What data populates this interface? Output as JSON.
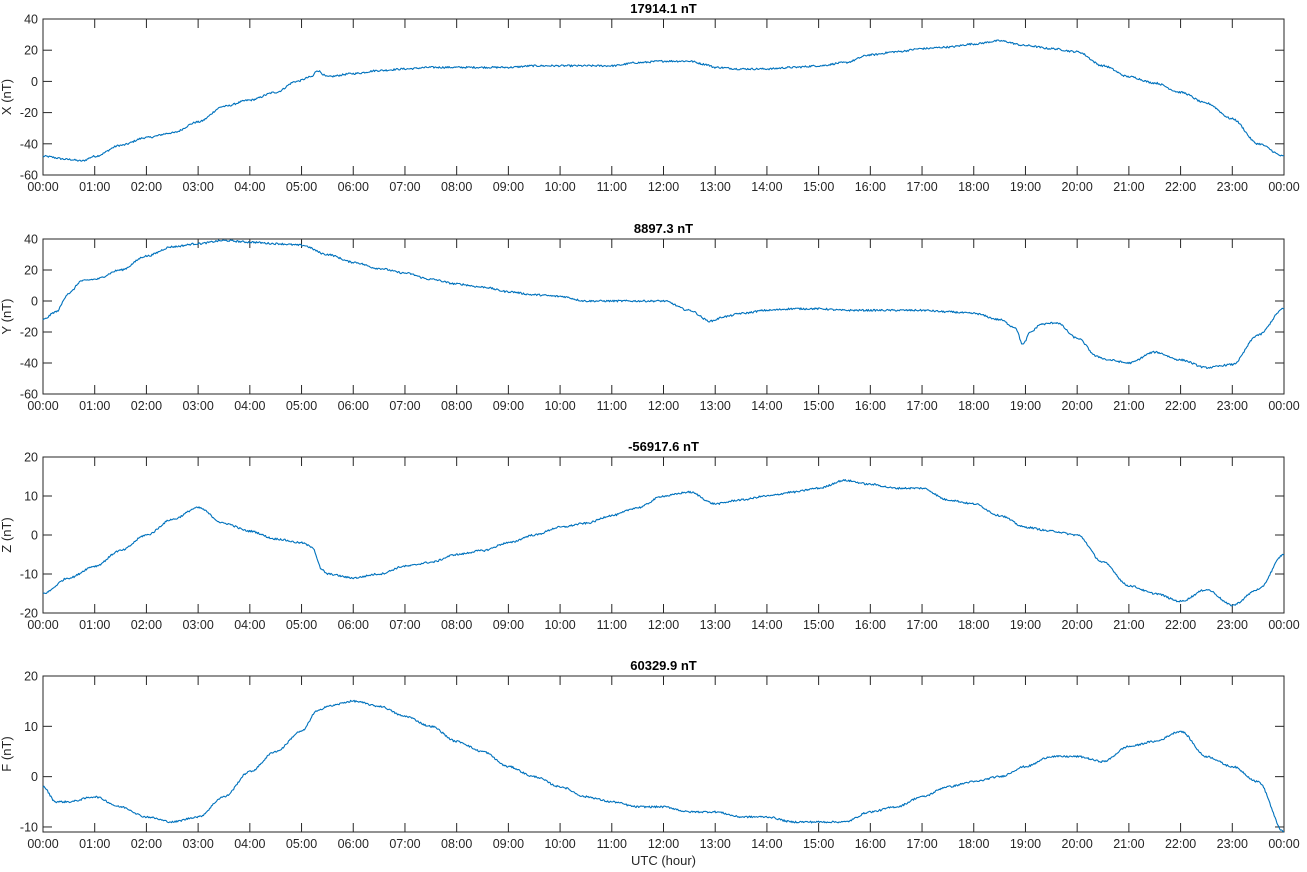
{
  "chart_data": [
    {
      "type": "line",
      "title": "17914.1 nT",
      "ylabel": "X (nT)",
      "xlabel": "",
      "ylim": [
        -60,
        40
      ],
      "yticks": [
        -60,
        -40,
        -20,
        0,
        20,
        40
      ],
      "xlim": [
        "00:00",
        "00:00 (+1 day)"
      ],
      "xtick_labels": [
        "00:00",
        "01:00",
        "02:00",
        "03:00",
        "04:00",
        "05:00",
        "06:00",
        "07:00",
        "08:00",
        "09:00",
        "10:00",
        "11:00",
        "12:00",
        "13:00",
        "14:00",
        "15:00",
        "16:00",
        "17:00",
        "18:00",
        "19:00",
        "20:00",
        "21:00",
        "22:00",
        "23:00",
        "00:00"
      ],
      "grid": false,
      "series": [
        {
          "color": "#0072BD",
          "x_hours": [
            0,
            0.5,
            0.75,
            1,
            1.5,
            2,
            2.5,
            3,
            3.5,
            4,
            4.5,
            4.9,
            5.2,
            5.3,
            5.5,
            6,
            6.5,
            7,
            7.5,
            8,
            8.5,
            9,
            9.5,
            10,
            10.5,
            11,
            11.5,
            12,
            12.5,
            12.8,
            13,
            13.5,
            14,
            14.5,
            15,
            15.5,
            16,
            16.5,
            17,
            17.5,
            18,
            18.5,
            19,
            19.5,
            20,
            20.5,
            21,
            21.5,
            22,
            22.5,
            23,
            23.5,
            24
          ],
          "y": [
            -48,
            -50,
            -51,
            -48,
            -41,
            -36,
            -33,
            -26,
            -16,
            -12,
            -7,
            0,
            3,
            7,
            3,
            5,
            7,
            8,
            9,
            9,
            9,
            9,
            10,
            10,
            10,
            10,
            12,
            13,
            13,
            11,
            9,
            8,
            8,
            9,
            10,
            12,
            17,
            19,
            21,
            22,
            24,
            26,
            23,
            21,
            19,
            10,
            3,
            -1,
            -7,
            -14,
            -24,
            -40,
            -48
          ]
        }
      ]
    },
    {
      "type": "line",
      "title": "8897.3 nT",
      "ylabel": "Y (nT)",
      "xlabel": "",
      "ylim": [
        -60,
        40
      ],
      "yticks": [
        -60,
        -40,
        -20,
        0,
        20,
        40
      ],
      "xlim": [
        "00:00",
        "00:00 (+1 day)"
      ],
      "xtick_labels": [
        "00:00",
        "01:00",
        "02:00",
        "03:00",
        "04:00",
        "05:00",
        "06:00",
        "07:00",
        "08:00",
        "09:00",
        "10:00",
        "11:00",
        "12:00",
        "13:00",
        "14:00",
        "15:00",
        "16:00",
        "17:00",
        "18:00",
        "19:00",
        "20:00",
        "21:00",
        "22:00",
        "23:00",
        "00:00"
      ],
      "grid": false,
      "series": [
        {
          "color": "#0072BD",
          "x_hours": [
            0,
            0.25,
            0.5,
            0.75,
            1,
            1.5,
            2,
            2.5,
            3,
            3.5,
            4,
            4.5,
            5,
            5.5,
            6,
            6.5,
            7,
            7.5,
            8,
            8.5,
            9,
            9.5,
            10,
            10.5,
            11,
            11.5,
            12,
            12.5,
            12.9,
            13.2,
            13.5,
            14,
            14.5,
            15,
            15.5,
            16,
            16.5,
            17,
            17.5,
            18,
            18.5,
            18.8,
            18.95,
            19.1,
            19.3,
            19.6,
            20,
            20.4,
            20.6,
            21,
            21.5,
            22,
            22.5,
            23,
            23.5,
            24
          ],
          "y": [
            -12,
            -7,
            5,
            13,
            14,
            20,
            29,
            35,
            37,
            39,
            38,
            37,
            36,
            30,
            25,
            21,
            18,
            14,
            11,
            9,
            6,
            4,
            3,
            0,
            0,
            0,
            0,
            -6,
            -13,
            -10,
            -8,
            -6,
            -5,
            -5,
            -6,
            -6,
            -6,
            -6,
            -7,
            -8,
            -12,
            -17,
            -28,
            -20,
            -15,
            -14,
            -24,
            -36,
            -38,
            -40,
            -33,
            -38,
            -43,
            -41,
            -22,
            -5
          ]
        }
      ]
    },
    {
      "type": "line",
      "title": "-56917.6 nT",
      "ylabel": "Z (nT)",
      "xlabel": "",
      "ylim": [
        -20,
        20
      ],
      "yticks": [
        -20,
        -10,
        0,
        10,
        20
      ],
      "xlim": [
        "00:00",
        "00:00 (+1 day)"
      ],
      "xtick_labels": [
        "00:00",
        "01:00",
        "02:00",
        "03:00",
        "04:00",
        "05:00",
        "06:00",
        "07:00",
        "08:00",
        "09:00",
        "10:00",
        "11:00",
        "12:00",
        "13:00",
        "14:00",
        "15:00",
        "16:00",
        "17:00",
        "18:00",
        "19:00",
        "20:00",
        "21:00",
        "22:00",
        "23:00",
        "00:00"
      ],
      "grid": false,
      "series": [
        {
          "color": "#0072BD",
          "x_hours": [
            0,
            0.5,
            1,
            1.5,
            2,
            2.5,
            3,
            3.5,
            4,
            4.5,
            5,
            5.2,
            5.4,
            5.5,
            6,
            6.5,
            7,
            7.5,
            8,
            8.5,
            9,
            9.5,
            10,
            10.5,
            11,
            11.5,
            12,
            12.5,
            13,
            13.5,
            14,
            14.5,
            15,
            15.5,
            16,
            16.5,
            17,
            17.5,
            18,
            18.5,
            19,
            19.5,
            20,
            20.5,
            21,
            21.5,
            22,
            22.5,
            23,
            23.5,
            24
          ],
          "y": [
            -15,
            -11,
            -8,
            -4,
            0,
            4,
            7,
            3,
            1,
            -1,
            -2,
            -3,
            -9,
            -10,
            -11,
            -10,
            -8,
            -7,
            -5,
            -4,
            -2,
            0,
            2,
            3,
            5,
            7,
            10,
            11,
            8,
            9,
            10,
            11,
            12,
            14,
            13,
            12,
            12,
            9,
            8,
            5,
            2,
            1,
            0,
            -7,
            -13,
            -15,
            -17,
            -14,
            -18,
            -14,
            -5
          ]
        }
      ]
    },
    {
      "type": "line",
      "title": "60329.9 nT",
      "ylabel": "F (nT)",
      "xlabel": "UTC (hour)",
      "ylim": [
        -11,
        20
      ],
      "yticks": [
        -10,
        0,
        10,
        20
      ],
      "xlim": [
        "00:00",
        "00:00 (+1 day)"
      ],
      "xtick_labels": [
        "00:00",
        "01:00",
        "02:00",
        "03:00",
        "04:00",
        "05:00",
        "06:00",
        "07:00",
        "08:00",
        "09:00",
        "10:00",
        "11:00",
        "12:00",
        "13:00",
        "14:00",
        "15:00",
        "16:00",
        "17:00",
        "18:00",
        "19:00",
        "20:00",
        "21:00",
        "22:00",
        "23:00",
        "00:00"
      ],
      "grid": false,
      "series": [
        {
          "color": "#0072BD",
          "x_hours": [
            0,
            0.25,
            0.5,
            1,
            1.5,
            2,
            2.5,
            3,
            3.5,
            4,
            4.5,
            5,
            5.3,
            5.5,
            6,
            6.5,
            7,
            7.5,
            8,
            8.5,
            9,
            9.5,
            10,
            10.5,
            11,
            11.5,
            12,
            12.5,
            13,
            13.5,
            14,
            14.5,
            15,
            15.5,
            16,
            16.5,
            17,
            17.5,
            18,
            18.5,
            19,
            19.5,
            20,
            20.5,
            21,
            21.5,
            22,
            22.5,
            23,
            23.5,
            24
          ],
          "y": [
            -2,
            -5,
            -5,
            -4,
            -6,
            -8,
            -9,
            -8,
            -4,
            1,
            5,
            9,
            13,
            14,
            15,
            14,
            12,
            10,
            7,
            5,
            2,
            0,
            -2,
            -4,
            -5,
            -6,
            -6,
            -7,
            -7,
            -8,
            -8,
            -9,
            -9,
            -9,
            -7,
            -6,
            -4,
            -2,
            -1,
            0,
            2,
            4,
            4,
            3,
            6,
            7,
            9,
            4,
            2,
            -1,
            -11
          ]
        }
      ]
    }
  ]
}
